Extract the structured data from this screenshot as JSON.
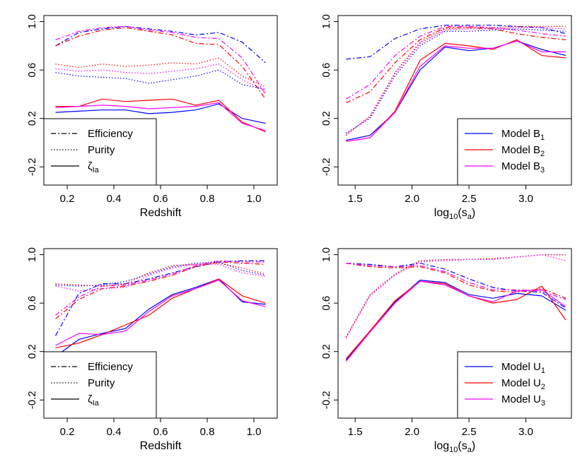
{
  "colors": {
    "blue": "#0000ff",
    "red": "#ff0000",
    "magenta": "#ff00ff",
    "black": "#000000"
  },
  "chart_data": [
    {
      "type": "line",
      "xlabel": "Redshift",
      "ylabel": "",
      "xlim": [
        0.1,
        1.1
      ],
      "ylim": [
        -0.35,
        1.05
      ],
      "xticks": [
        0.2,
        0.4,
        0.6,
        0.8,
        1.0
      ],
      "yticks": [
        -0.2,
        0.2,
        0.6,
        1.0
      ],
      "xtick_labels": [
        "0.2",
        "0.4",
        "0.6",
        "0.8",
        "1.0"
      ],
      "ytick_labels": [
        "-0.2",
        "0.2",
        "0.6",
        "1.0"
      ],
      "legend_position": "bottom-left",
      "legend": [
        {
          "label": "Efficiency",
          "style": "dashdot",
          "sub": ""
        },
        {
          "label": "Purity",
          "style": "dotted",
          "sub": ""
        },
        {
          "label": "ζ",
          "style": "solid",
          "sub": "Ia"
        }
      ],
      "x": [
        0.15,
        0.25,
        0.35,
        0.45,
        0.55,
        0.65,
        0.75,
        0.85,
        0.95,
        1.05
      ],
      "series": [
        {
          "metric": "efficiency",
          "color": "blue",
          "values": [
            0.8,
            0.91,
            0.94,
            0.96,
            0.94,
            0.92,
            0.89,
            0.91,
            0.83,
            0.66
          ]
        },
        {
          "metric": "efficiency",
          "color": "red",
          "values": [
            0.8,
            0.88,
            0.93,
            0.95,
            0.92,
            0.89,
            0.82,
            0.81,
            0.63,
            0.36
          ]
        },
        {
          "metric": "efficiency",
          "color": "magenta",
          "values": [
            0.85,
            0.92,
            0.95,
            0.96,
            0.93,
            0.91,
            0.87,
            0.86,
            0.7,
            0.4
          ]
        },
        {
          "metric": "purity",
          "color": "blue",
          "values": [
            0.58,
            0.55,
            0.54,
            0.53,
            0.49,
            0.52,
            0.55,
            0.6,
            0.48,
            0.44
          ]
        },
        {
          "metric": "purity",
          "color": "red",
          "values": [
            0.65,
            0.62,
            0.65,
            0.63,
            0.64,
            0.66,
            0.65,
            0.7,
            0.55,
            0.46
          ]
        },
        {
          "metric": "purity",
          "color": "magenta",
          "values": [
            0.61,
            0.59,
            0.6,
            0.58,
            0.57,
            0.59,
            0.61,
            0.65,
            0.52,
            0.43
          ]
        },
        {
          "metric": "zeta",
          "color": "blue",
          "values": [
            0.25,
            0.26,
            0.27,
            0.27,
            0.24,
            0.25,
            0.27,
            0.32,
            0.2,
            0.16
          ]
        },
        {
          "metric": "zeta",
          "color": "red",
          "values": [
            0.3,
            0.3,
            0.36,
            0.34,
            0.35,
            0.36,
            0.31,
            0.35,
            0.17,
            0.09
          ]
        },
        {
          "metric": "zeta",
          "color": "magenta",
          "values": [
            0.29,
            0.3,
            0.31,
            0.3,
            0.28,
            0.29,
            0.3,
            0.33,
            0.16,
            0.1
          ]
        }
      ]
    },
    {
      "type": "line",
      "xlabel": "log",
      "xlabel_sub": "10",
      "xlabel_tail": "(s",
      "xlabel_sub2": "a",
      "xlabel_end": ")",
      "ylabel": "",
      "xlim": [
        1.35,
        3.4
      ],
      "ylim": [
        -0.35,
        1.05
      ],
      "xticks": [
        1.5,
        2.0,
        2.5,
        3.0
      ],
      "yticks": [
        -0.2,
        0.2,
        0.6,
        1.0
      ],
      "xtick_labels": [
        "1.5",
        "2.0",
        "2.5",
        "3.0"
      ],
      "ytick_labels": [
        "-0.2",
        "0.2",
        "0.6",
        "1.0"
      ],
      "legend_position": "bottom-right",
      "legend": [
        {
          "label": "Model B",
          "sub": "1",
          "color": "blue"
        },
        {
          "label": "Model B",
          "sub": "2",
          "color": "red"
        },
        {
          "label": "Model B",
          "sub": "3",
          "color": "magenta"
        }
      ],
      "x": [
        1.42,
        1.63,
        1.85,
        2.07,
        2.29,
        2.5,
        2.71,
        2.92,
        3.14,
        3.35
      ],
      "series": [
        {
          "metric": "efficiency",
          "color": "blue",
          "values": [
            0.69,
            0.71,
            0.86,
            0.94,
            0.97,
            0.97,
            0.97,
            0.96,
            0.95,
            0.9
          ]
        },
        {
          "metric": "efficiency",
          "color": "red",
          "values": [
            0.33,
            0.42,
            0.66,
            0.85,
            0.95,
            0.95,
            0.94,
            0.9,
            0.87,
            0.85
          ]
        },
        {
          "metric": "efficiency",
          "color": "magenta",
          "values": [
            0.36,
            0.48,
            0.72,
            0.88,
            0.96,
            0.96,
            0.95,
            0.93,
            0.9,
            0.88
          ]
        },
        {
          "metric": "purity",
          "color": "blue",
          "values": [
            0.08,
            0.2,
            0.55,
            0.8,
            0.92,
            0.92,
            0.93,
            0.94,
            0.93,
            0.92
          ]
        },
        {
          "metric": "purity",
          "color": "red",
          "values": [
            0.06,
            0.22,
            0.58,
            0.83,
            0.94,
            0.95,
            0.95,
            0.96,
            0.96,
            0.96
          ]
        },
        {
          "metric": "purity",
          "color": "magenta",
          "values": [
            0.07,
            0.21,
            0.57,
            0.82,
            0.93,
            0.94,
            0.94,
            0.95,
            0.95,
            0.94
          ]
        },
        {
          "metric": "zeta",
          "color": "blue",
          "values": [
            0.02,
            0.06,
            0.25,
            0.6,
            0.79,
            0.76,
            0.78,
            0.84,
            0.77,
            0.72
          ]
        },
        {
          "metric": "zeta",
          "color": "red",
          "values": [
            0.01,
            0.04,
            0.26,
            0.68,
            0.82,
            0.8,
            0.77,
            0.85,
            0.72,
            0.7
          ]
        },
        {
          "metric": "zeta",
          "color": "magenta",
          "values": [
            0.01,
            0.04,
            0.25,
            0.63,
            0.8,
            0.78,
            0.78,
            0.84,
            0.75,
            0.75
          ]
        }
      ]
    },
    {
      "type": "line",
      "xlabel": "Redshift",
      "ylabel": "",
      "xlim": [
        0.1,
        1.1
      ],
      "ylim": [
        -0.35,
        1.05
      ],
      "xticks": [
        0.2,
        0.4,
        0.6,
        0.8,
        1.0
      ],
      "yticks": [
        -0.2,
        0.2,
        0.6,
        1.0
      ],
      "xtick_labels": [
        "0.2",
        "0.4",
        "0.6",
        "0.8",
        "1.0"
      ],
      "ytick_labels": [
        "-0.2",
        "0.2",
        "0.6",
        "1.0"
      ],
      "legend_position": "bottom-left",
      "legend": [
        {
          "label": "Efficiency",
          "style": "dashdot",
          "sub": ""
        },
        {
          "label": "Purity",
          "style": "dotted",
          "sub": ""
        },
        {
          "label": "ζ",
          "style": "solid",
          "sub": "Ia"
        }
      ],
      "x": [
        0.15,
        0.25,
        0.35,
        0.45,
        0.55,
        0.65,
        0.75,
        0.85,
        0.95,
        1.05
      ],
      "series": [
        {
          "metric": "efficiency",
          "color": "blue",
          "values": [
            0.33,
            0.68,
            0.76,
            0.76,
            0.8,
            0.85,
            0.9,
            0.94,
            0.95,
            0.95
          ]
        },
        {
          "metric": "efficiency",
          "color": "red",
          "values": [
            0.47,
            0.63,
            0.72,
            0.74,
            0.78,
            0.83,
            0.9,
            0.94,
            0.93,
            0.92
          ]
        },
        {
          "metric": "efficiency",
          "color": "magenta",
          "values": [
            0.5,
            0.65,
            0.74,
            0.75,
            0.79,
            0.84,
            0.91,
            0.95,
            0.94,
            0.94
          ]
        },
        {
          "metric": "purity",
          "color": "blue",
          "values": [
            0.75,
            0.74,
            0.75,
            0.78,
            0.84,
            0.9,
            0.93,
            0.94,
            0.87,
            0.83
          ]
        },
        {
          "metric": "purity",
          "color": "red",
          "values": [
            0.76,
            0.75,
            0.74,
            0.76,
            0.85,
            0.91,
            0.92,
            0.93,
            0.89,
            0.84
          ]
        },
        {
          "metric": "purity",
          "color": "magenta",
          "values": [
            0.74,
            0.7,
            0.72,
            0.73,
            0.83,
            0.89,
            0.92,
            0.92,
            0.85,
            0.82
          ]
        },
        {
          "metric": "zeta",
          "color": "blue",
          "values": [
            0.16,
            0.3,
            0.35,
            0.39,
            0.55,
            0.67,
            0.73,
            0.8,
            0.61,
            0.59
          ]
        },
        {
          "metric": "zeta",
          "color": "red",
          "values": [
            0.23,
            0.27,
            0.34,
            0.42,
            0.5,
            0.64,
            0.72,
            0.8,
            0.66,
            0.6
          ]
        },
        {
          "metric": "zeta",
          "color": "magenta",
          "values": [
            0.25,
            0.35,
            0.34,
            0.37,
            0.53,
            0.66,
            0.72,
            0.79,
            0.62,
            0.57
          ]
        }
      ]
    },
    {
      "type": "line",
      "xlabel": "log",
      "xlabel_sub": "10",
      "xlabel_tail": "(s",
      "xlabel_sub2": "a",
      "xlabel_end": ")",
      "ylabel": "",
      "xlim": [
        1.35,
        3.4
      ],
      "ylim": [
        -0.35,
        1.05
      ],
      "xticks": [
        1.5,
        2.0,
        2.5,
        3.0
      ],
      "yticks": [
        -0.2,
        0.2,
        0.6,
        1.0
      ],
      "xtick_labels": [
        "1.5",
        "2.0",
        "2.5",
        "3.0"
      ],
      "ytick_labels": [
        "-0.2",
        "0.2",
        "0.6",
        "1.0"
      ],
      "legend_position": "bottom-right",
      "legend": [
        {
          "label": "Model U",
          "sub": "1",
          "color": "blue"
        },
        {
          "label": "Model U",
          "sub": "2",
          "color": "red"
        },
        {
          "label": "Model U",
          "sub": "3",
          "color": "magenta"
        }
      ],
      "x": [
        1.42,
        1.63,
        1.85,
        2.07,
        2.29,
        2.5,
        2.71,
        2.92,
        3.14,
        3.35
      ],
      "series": [
        {
          "metric": "efficiency",
          "color": "blue",
          "values": [
            0.93,
            0.92,
            0.9,
            0.93,
            0.88,
            0.8,
            0.73,
            0.7,
            0.69,
            0.56
          ]
        },
        {
          "metric": "efficiency",
          "color": "red",
          "values": [
            0.93,
            0.9,
            0.89,
            0.9,
            0.85,
            0.75,
            0.7,
            0.69,
            0.72,
            0.64
          ]
        },
        {
          "metric": "efficiency",
          "color": "magenta",
          "values": [
            0.93,
            0.91,
            0.9,
            0.91,
            0.86,
            0.77,
            0.71,
            0.71,
            0.7,
            0.63
          ]
        },
        {
          "metric": "purity",
          "color": "blue",
          "values": [
            0.32,
            0.67,
            0.84,
            0.95,
            0.96,
            0.96,
            0.96,
            0.98,
            1.0,
            1.0
          ]
        },
        {
          "metric": "purity",
          "color": "red",
          "values": [
            0.32,
            0.67,
            0.84,
            0.95,
            0.96,
            0.96,
            0.97,
            0.98,
            1.0,
            1.0
          ]
        },
        {
          "metric": "purity",
          "color": "magenta",
          "values": [
            0.31,
            0.66,
            0.83,
            0.94,
            0.95,
            0.96,
            0.96,
            0.98,
            1.0,
            0.95
          ]
        },
        {
          "metric": "zeta",
          "color": "blue",
          "values": [
            0.13,
            0.37,
            0.61,
            0.79,
            0.77,
            0.67,
            0.64,
            0.68,
            0.66,
            0.54
          ]
        },
        {
          "metric": "zeta",
          "color": "red",
          "values": [
            0.14,
            0.37,
            0.62,
            0.78,
            0.76,
            0.66,
            0.6,
            0.63,
            0.74,
            0.46
          ]
        },
        {
          "metric": "zeta",
          "color": "magenta",
          "values": [
            0.12,
            0.36,
            0.6,
            0.78,
            0.75,
            0.66,
            0.61,
            0.7,
            0.71,
            0.57
          ]
        }
      ]
    }
  ]
}
